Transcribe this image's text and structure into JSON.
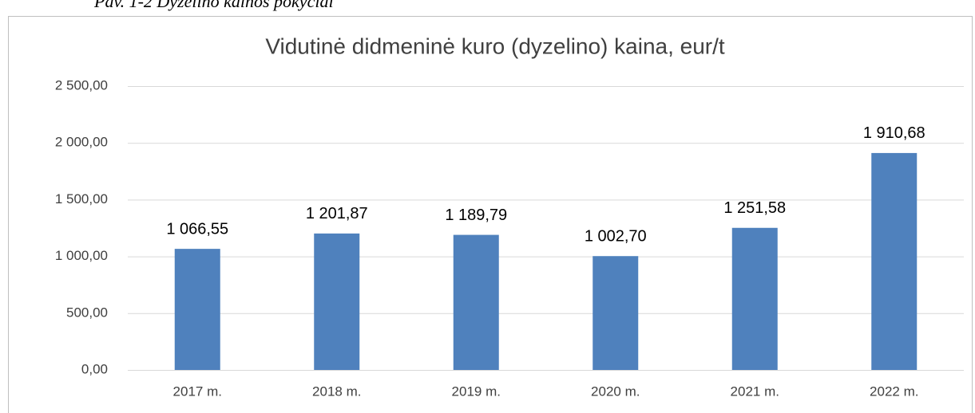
{
  "caption": "Pav. 1-2 Dyzelino kainos pokyčiai",
  "chart_data": {
    "type": "bar",
    "title": "Vidutinė didmeninė kuro (dyzelino) kaina, eur/t",
    "categories": [
      "2017 m.",
      "2018 m.",
      "2019 m.",
      "2020 m.",
      "2021 m.",
      "2022 m."
    ],
    "values": [
      1066.55,
      1201.87,
      1189.79,
      1002.7,
      1251.58,
      1910.68
    ],
    "value_labels": [
      "1 066,55",
      "1 201,87",
      "1 189,79",
      "1 002,70",
      "1 251,58",
      "1 910,68"
    ],
    "color": "#4f81bd",
    "ylim": [
      0,
      2500
    ],
    "yticks": [
      {
        "value": 0,
        "label": "0,00"
      },
      {
        "value": 500,
        "label": "500,00"
      },
      {
        "value": 1000,
        "label": "1 000,00"
      },
      {
        "value": 1500,
        "label": "1 500,00"
      },
      {
        "value": 2000,
        "label": "2 000,00"
      },
      {
        "value": 2500,
        "label": "2 500,00"
      }
    ],
    "grid": true
  }
}
